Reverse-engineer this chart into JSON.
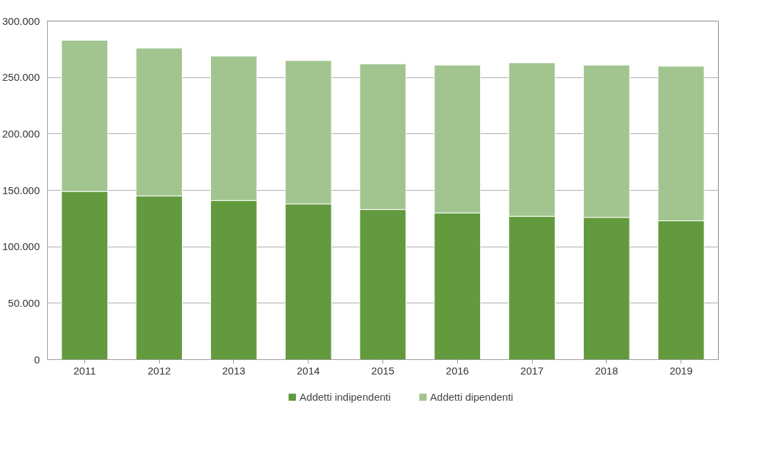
{
  "chart_data": {
    "type": "bar",
    "stacked": true,
    "categories": [
      "2011",
      "2012",
      "2013",
      "2014",
      "2015",
      "2016",
      "2017",
      "2018",
      "2019"
    ],
    "series": [
      {
        "name": "Addetti indipendenti",
        "color": "#629a3d",
        "values": [
          149000,
          145000,
          141000,
          138000,
          133000,
          130000,
          127000,
          126000,
          123000
        ]
      },
      {
        "name": "Addetti dipendenti",
        "color": "#a2c590",
        "values": [
          134000,
          131000,
          128000,
          127000,
          129000,
          131000,
          136000,
          135000,
          137000
        ]
      }
    ],
    "ylim": [
      0,
      300000
    ],
    "yticks": [
      {
        "value": 0,
        "label": "0"
      },
      {
        "value": 50000,
        "label": "50.000"
      },
      {
        "value": 100000,
        "label": "100.000"
      },
      {
        "value": 150000,
        "label": "150.000"
      },
      {
        "value": 200000,
        "label": "200.000"
      },
      {
        "value": 250000,
        "label": "250.000"
      },
      {
        "value": 300000,
        "label": "300.000"
      }
    ],
    "grid": "y",
    "legend": "bottom"
  }
}
